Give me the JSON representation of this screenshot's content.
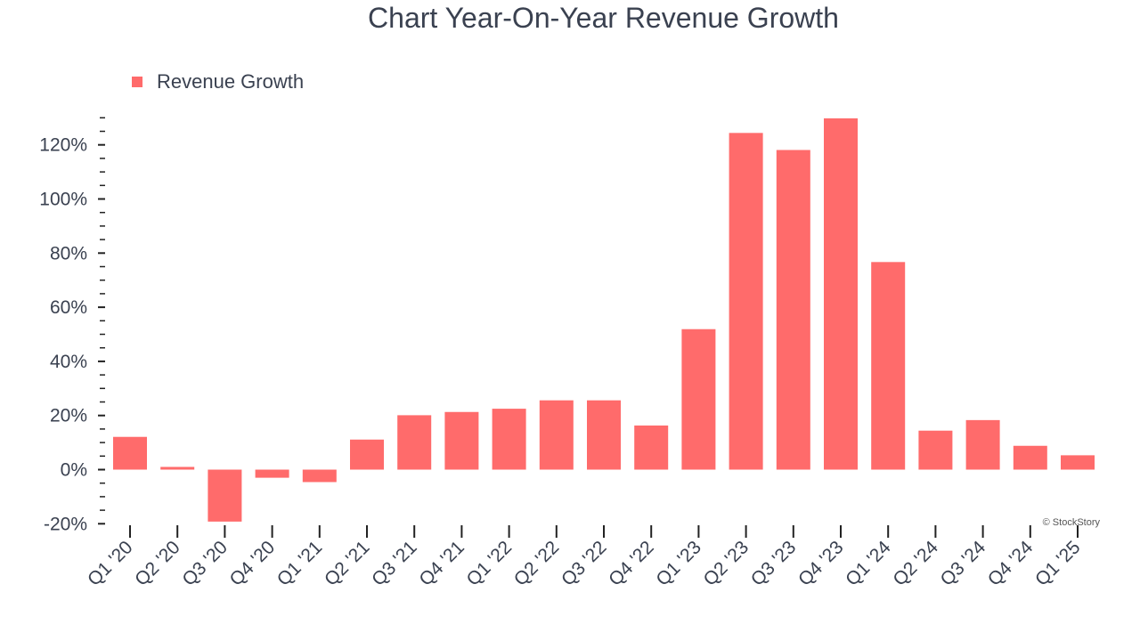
{
  "colors": {
    "bar": "#ff6b6b",
    "axis": "#222222",
    "text": "#3a4150"
  },
  "watermark": "© StockStory",
  "chart_data": {
    "type": "bar",
    "title": "Chart Year-On-Year Revenue Growth",
    "xlabel": "",
    "ylabel": "",
    "legend": "top-left",
    "grid": false,
    "ylim": [
      -20,
      130
    ],
    "yticks": [
      -20,
      0,
      20,
      40,
      60,
      80,
      100,
      120
    ],
    "ytick_labels": [
      "-20%",
      "0%",
      "20%",
      "40%",
      "60%",
      "80%",
      "100%",
      "120%"
    ],
    "categories": [
      "Q1 '20",
      "Q2 '20",
      "Q3 '20",
      "Q4 '20",
      "Q1 '21",
      "Q2 '21",
      "Q3 '21",
      "Q4 '21",
      "Q1 '22",
      "Q2 '22",
      "Q3 '22",
      "Q4 '22",
      "Q1 '23",
      "Q2 '23",
      "Q3 '23",
      "Q4 '23",
      "Q1 '24",
      "Q2 '24",
      "Q3 '24",
      "Q4 '24",
      "Q1 '25"
    ],
    "series": [
      {
        "name": "Revenue Growth",
        "values": [
          12.1,
          1.0,
          -19.2,
          -3.0,
          -4.6,
          11.1,
          20.1,
          21.3,
          22.5,
          25.6,
          25.6,
          16.3,
          51.9,
          124.4,
          118.1,
          129.8,
          76.7,
          14.4,
          18.3,
          8.8,
          5.3
        ]
      }
    ]
  }
}
